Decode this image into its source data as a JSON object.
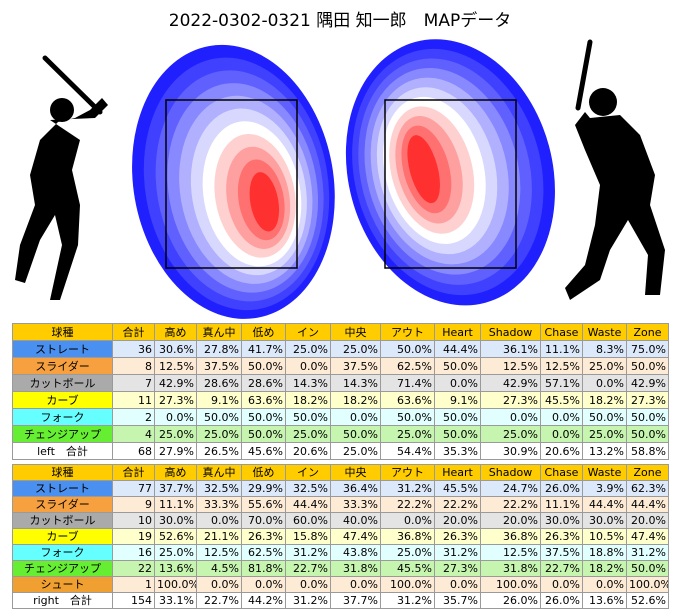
{
  "title": "2022-0302-0321 隅田 知一郎　MAPデータ",
  "header_color": "#ffcc00",
  "tables": [
    {
      "header": [
        "球種",
        "合計",
        "高め",
        "真ん中",
        "低め",
        "イン",
        "中央",
        "アウト",
        "Heart",
        "Shadow",
        "Chase",
        "Waste",
        "Zone"
      ],
      "rows": [
        {
          "label": "ストレート",
          "color": "#4a90f0",
          "cell_color": "#dce9fb",
          "count": 36,
          "values": [
            "30.6%",
            "27.8%",
            "41.7%",
            "25.0%",
            "25.0%",
            "50.0%",
            "44.4%",
            "36.1%",
            "11.1%",
            "8.3%",
            "75.0%"
          ]
        },
        {
          "label": "スライダー",
          "color": "#f7a040",
          "cell_color": "#fdebd6",
          "count": 8,
          "values": [
            "12.5%",
            "37.5%",
            "50.0%",
            "0.0%",
            "37.5%",
            "62.5%",
            "50.0%",
            "12.5%",
            "12.5%",
            "25.0%",
            "50.0%"
          ]
        },
        {
          "label": "カットボール",
          "color": "#aaaaaa",
          "cell_color": "#e4e4e4",
          "count": 7,
          "values": [
            "42.9%",
            "28.6%",
            "28.6%",
            "14.3%",
            "14.3%",
            "71.4%",
            "0.0%",
            "42.9%",
            "57.1%",
            "0.0%",
            "42.9%"
          ]
        },
        {
          "label": "カーブ",
          "color": "#ffff00",
          "cell_color": "#ffffcc",
          "count": 11,
          "values": [
            "27.3%",
            "9.1%",
            "63.6%",
            "18.2%",
            "18.2%",
            "63.6%",
            "9.1%",
            "27.3%",
            "45.5%",
            "18.2%",
            "27.3%"
          ]
        },
        {
          "label": "フォーク",
          "color": "#66ffff",
          "cell_color": "#e2ffff",
          "count": 2,
          "values": [
            "0.0%",
            "50.0%",
            "50.0%",
            "50.0%",
            "0.0%",
            "50.0%",
            "50.0%",
            "0.0%",
            "0.0%",
            "50.0%",
            "50.0%"
          ]
        },
        {
          "label": "チェンジアップ",
          "color": "#66ee33",
          "cell_color": "#c6f5b0",
          "count": 4,
          "values": [
            "25.0%",
            "25.0%",
            "50.0%",
            "25.0%",
            "50.0%",
            "25.0%",
            "50.0%",
            "25.0%",
            "0.0%",
            "25.0%",
            "50.0%"
          ]
        },
        {
          "label": "left　合計",
          "color": "#ffffff",
          "cell_color": "#ffffff",
          "count": 68,
          "values": [
            "27.9%",
            "26.5%",
            "45.6%",
            "20.6%",
            "25.0%",
            "54.4%",
            "35.3%",
            "30.9%",
            "20.6%",
            "13.2%",
            "58.8%"
          ]
        }
      ]
    },
    {
      "header": [
        "球種",
        "合計",
        "高め",
        "真ん中",
        "低め",
        "イン",
        "中央",
        "アウト",
        "Heart",
        "Shadow",
        "Chase",
        "Waste",
        "Zone"
      ],
      "rows": [
        {
          "label": "ストレート",
          "color": "#4a90f0",
          "cell_color": "#dce9fb",
          "count": 77,
          "values": [
            "37.7%",
            "32.5%",
            "29.9%",
            "32.5%",
            "36.4%",
            "31.2%",
            "45.5%",
            "24.7%",
            "26.0%",
            "3.9%",
            "62.3%"
          ]
        },
        {
          "label": "スライダー",
          "color": "#f7a040",
          "cell_color": "#fdebd6",
          "count": 9,
          "values": [
            "11.1%",
            "33.3%",
            "55.6%",
            "44.4%",
            "33.3%",
            "22.2%",
            "22.2%",
            "22.2%",
            "11.1%",
            "44.4%",
            "44.4%"
          ]
        },
        {
          "label": "カットボール",
          "color": "#aaaaaa",
          "cell_color": "#e4e4e4",
          "count": 10,
          "values": [
            "30.0%",
            "0.0%",
            "70.0%",
            "60.0%",
            "40.0%",
            "0.0%",
            "20.0%",
            "20.0%",
            "30.0%",
            "30.0%",
            "20.0%"
          ]
        },
        {
          "label": "カーブ",
          "color": "#ffff00",
          "cell_color": "#ffffcc",
          "count": 19,
          "values": [
            "52.6%",
            "21.1%",
            "26.3%",
            "15.8%",
            "47.4%",
            "36.8%",
            "26.3%",
            "36.8%",
            "26.3%",
            "10.5%",
            "47.4%"
          ]
        },
        {
          "label": "フォーク",
          "color": "#66ffff",
          "cell_color": "#e2ffff",
          "count": 16,
          "values": [
            "25.0%",
            "12.5%",
            "62.5%",
            "31.2%",
            "43.8%",
            "25.0%",
            "31.2%",
            "12.5%",
            "37.5%",
            "18.8%",
            "31.2%"
          ]
        },
        {
          "label": "チェンジアップ",
          "color": "#66ee33",
          "cell_color": "#c6f5b0",
          "count": 22,
          "values": [
            "13.6%",
            "4.5%",
            "81.8%",
            "22.7%",
            "31.8%",
            "45.5%",
            "27.3%",
            "31.8%",
            "22.7%",
            "18.2%",
            "50.0%"
          ]
        },
        {
          "label": "シュート",
          "color": "#f0a030",
          "cell_color": "#fdebd6",
          "count": 1,
          "values": [
            "100.0%",
            "0.0%",
            "0.0%",
            "0.0%",
            "0.0%",
            "100.0%",
            "0.0%",
            "100.0%",
            "0.0%",
            "0.0%",
            "100.0%"
          ]
        },
        {
          "label": "right　合計",
          "color": "#ffffff",
          "cell_color": "#ffffff",
          "count": 154,
          "values": [
            "33.1%",
            "22.7%",
            "44.2%",
            "31.2%",
            "37.7%",
            "31.2%",
            "35.7%",
            "26.0%",
            "26.0%",
            "13.6%",
            "52.6%"
          ]
        }
      ]
    }
  ]
}
